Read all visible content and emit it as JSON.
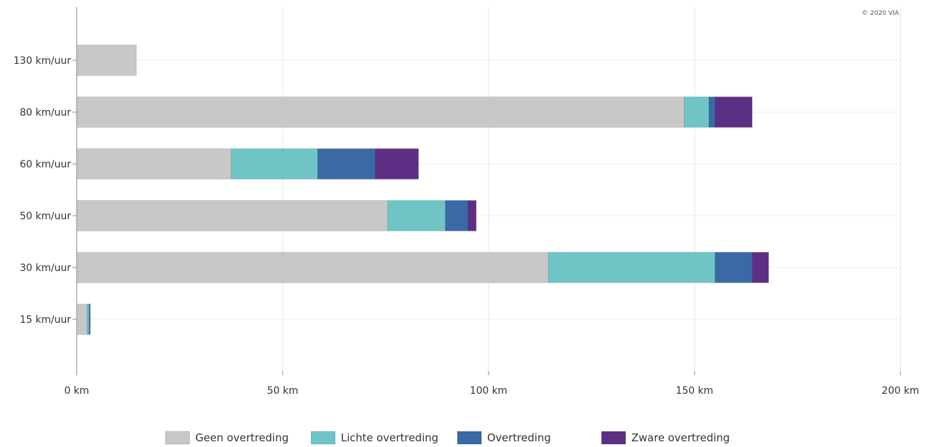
{
  "chart_data": {
    "type": "bar",
    "orientation": "horizontal",
    "stacked": true,
    "categories": [
      "130 km/uur",
      "80 km/uur",
      "60 km/uur",
      "50 km/uur",
      "30 km/uur",
      "15 km/uur"
    ],
    "series": [
      {
        "name": "Geen overtreding",
        "color": "#c8c8c8",
        "values": [
          14.5,
          147.5,
          37.5,
          75.5,
          114.5,
          2.5
        ]
      },
      {
        "name": "Lichte overtreding",
        "color": "#6fc4c6",
        "values": [
          0,
          6,
          21,
          14,
          40.5,
          0.5
        ]
      },
      {
        "name": "Overtreding",
        "color": "#3a69a6",
        "values": [
          0,
          1.5,
          14,
          5.5,
          9,
          0.3
        ]
      },
      {
        "name": "Zware overtreding",
        "color": "#5c2f84",
        "values": [
          0,
          9,
          10.5,
          2,
          4,
          0
        ]
      }
    ],
    "x_ticks": [
      "0 km",
      "50 km",
      "100 km",
      "150 km",
      "200 km"
    ],
    "xlim": [
      0,
      200
    ],
    "grid": true,
    "legend_position": "bottom",
    "copyright": "© 2020 VIA"
  }
}
